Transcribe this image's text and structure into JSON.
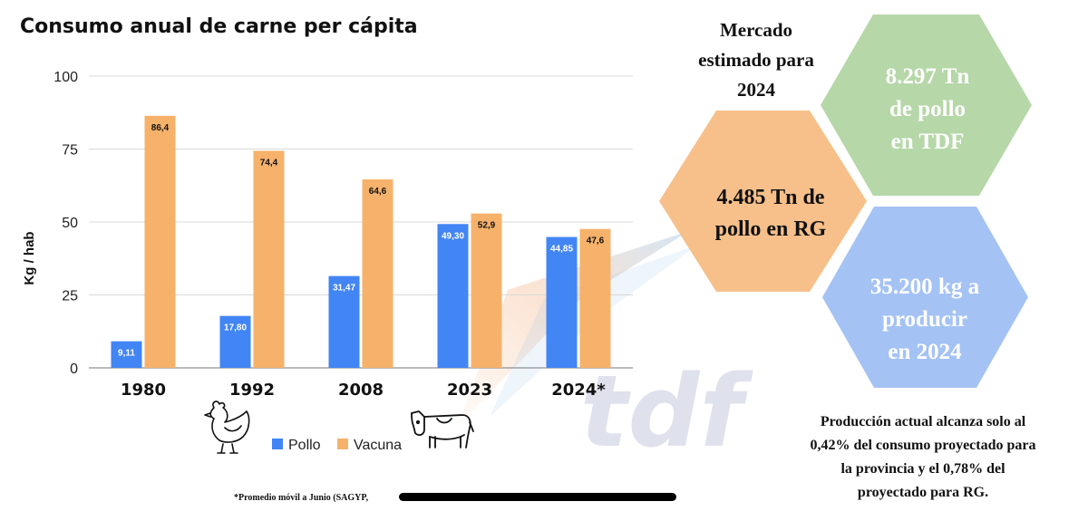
{
  "chart_data": {
    "type": "bar",
    "title": "Consumo anual de carne per cápita",
    "ylabel": "Kg / hab",
    "xlabel": "",
    "ylim": [
      0,
      100
    ],
    "yticks": [
      0,
      25,
      50,
      75,
      100
    ],
    "categories": [
      "1980",
      "1992",
      "2008",
      "2023",
      "2024*"
    ],
    "series": [
      {
        "name": "Pollo",
        "color": "#4285f4",
        "values": [
          9.11,
          17.8,
          31.47,
          49.3,
          44.85
        ],
        "labels": [
          "9,11",
          "17,80",
          "31,47",
          "49,30",
          "44,85"
        ]
      },
      {
        "name": "Vacuna",
        "color": "#f6b26b",
        "values": [
          86.4,
          74.4,
          64.6,
          52.9,
          47.6
        ],
        "labels": [
          "86,4",
          "74,4",
          "64,6",
          "52,9",
          "47,6"
        ]
      }
    ],
    "legend_position": "bottom",
    "grid": true,
    "footnote": "*Promedio móvil a Junio (SAGYP,"
  },
  "infographic": {
    "market_heading": [
      "Mercado",
      "estimado para",
      "2024"
    ],
    "hexagons": [
      {
        "lines": [
          "4.485 Tn de",
          "pollo en RG"
        ],
        "color": "#f7c08a",
        "text_color": "#111111"
      },
      {
        "lines": [
          "8.297 Tn",
          "de pollo",
          "en TDF"
        ],
        "color": "#b6d7a8",
        "text_color": "#ffffff"
      },
      {
        "lines": [
          "35.200 kg a",
          "producir",
          "en 2024"
        ],
        "color": "#a4c2f4",
        "text_color": "#ffffff"
      }
    ],
    "summary_lines": [
      "Producción actual alcanza solo al",
      "0,42% del consumo proyectado para",
      "la provincia y el 0,78% del",
      "proyectado para RG."
    ]
  },
  "watermark": {
    "text": "tdf"
  },
  "icons": [
    "chicken-icon",
    "cow-icon"
  ]
}
